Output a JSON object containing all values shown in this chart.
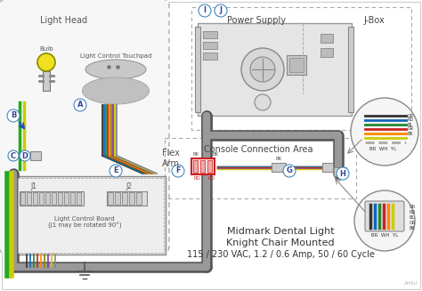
{
  "title_line1": "Midmark Dental Light",
  "title_line2": "Knight Chair Mounted",
  "title_line3": "115 / 230 VAC, 1.2 / 0.6 Amp, 50 / 60 Cycle",
  "background_color": "#ffffff",
  "light_head_label": "Light Head",
  "bulb_label": "Bulb",
  "light_control_touchpad_label": "Light Control Touchpad",
  "flex_arm_label": "Flex\nArm",
  "power_supply_label": "Power Supply",
  "jbox_label": "J-Box",
  "console_area_label": "Console Connection Area",
  "lcb_label": "Light Control Board\n(J1 may be rotated 90°)",
  "j1_label": "J1",
  "j2_label": "J2",
  "wire_colors_main": [
    "#333333",
    "#1166bb",
    "#228833",
    "#cc2222",
    "#ff8800",
    "#888800",
    "#8833aa",
    "#cccc00",
    "#888888"
  ],
  "wire_colors_bundle": [
    "#333333",
    "#1166bb",
    "#228833",
    "#cc2222",
    "#ff8800",
    "#888800",
    "#8833aa",
    "#cccc00",
    "#888888",
    "#44bbbb"
  ],
  "node_bg": "#ffffff",
  "node_ec": "#4488bb",
  "dashed_color": "#aaaaaa",
  "gray_cable": "#666666",
  "gray_cable_light": "#aaaaaa",
  "ps_box_fill": "#e5e5e5",
  "ps_box_ec": "#888888",
  "lcb_fill": "#e0e0e0",
  "watermark": "Artful"
}
